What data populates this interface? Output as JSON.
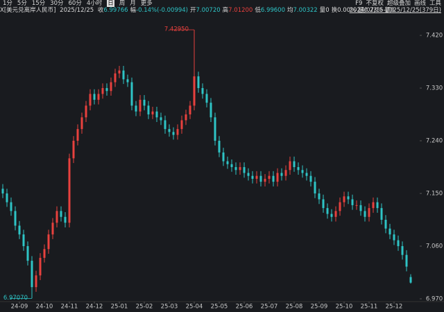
{
  "toolbar": {
    "periods": [
      "1分",
      "5分",
      "15分",
      "30分",
      "60分",
      "4小时",
      "日",
      "周",
      "月",
      "更多"
    ],
    "active": "日",
    "tools": [
      "F9",
      "不复权",
      "超级叠加",
      "画线",
      "工具"
    ]
  },
  "quote": {
    "symbol": "X[美元兑离岸人民币]",
    "date": "2025/12/25",
    "items": [
      {
        "label": "收",
        "value": "6.99766",
        "color": "#2ec4c6"
      },
      {
        "label": "幅",
        "value": "-0.14%(-0.00994)",
        "color": "#2ec4c6"
      },
      {
        "label": "开",
        "value": "7.00720",
        "color": "#2ec4c6"
      },
      {
        "label": "高",
        "value": "7.01200",
        "color": "#e8413e"
      },
      {
        "label": "低",
        "value": "6.99600",
        "color": "#2ec4c6"
      },
      {
        "label": "均",
        "value": "7.00322",
        "color": "#2ec4c6"
      },
      {
        "label": "量",
        "value": "0",
        "color": "#d8d8d8"
      },
      {
        "label": "换",
        "value": "0.00%",
        "color": "#d8d8d8"
      },
      {
        "label": "振",
        "value": "0.23%",
        "color": "#d8d8d8"
      },
      {
        "label": "额",
        "value": "0",
        "color": "#d8d8d8"
      }
    ],
    "range": "2024/07/15-2025/12/25(379日)"
  },
  "chart_data": {
    "type": "candlestick",
    "up_color": "#e8413e",
    "down_color": "#2ec4c6",
    "max_label": "7.42950",
    "min_label": "6.97070",
    "open": [
      7.158,
      7.15,
      7.135,
      7.12,
      7.095,
      7.08,
      7.06,
      7.035,
      6.99,
      7.01,
      7.04,
      7.055,
      7.08,
      7.1,
      7.12,
      7.11,
      7.1,
      7.21,
      7.24,
      7.26,
      7.28,
      7.3,
      7.32,
      7.31,
      7.32,
      7.33,
      7.325,
      7.34,
      7.355,
      7.36,
      7.345,
      7.34,
      7.3,
      7.29,
      7.31,
      7.3,
      7.285,
      7.29,
      7.28,
      7.275,
      7.26,
      7.255,
      7.25,
      7.26,
      7.275,
      7.285,
      7.3,
      7.35,
      7.33,
      7.32,
      7.305,
      7.28,
      7.24,
      7.22,
      7.205,
      7.2,
      7.195,
      7.19,
      7.195,
      7.185,
      7.18,
      7.175,
      7.18,
      7.17,
      7.175,
      7.18,
      7.17,
      7.185,
      7.18,
      7.19,
      7.205,
      7.195,
      7.19,
      7.185,
      7.18,
      7.17,
      7.15,
      7.14,
      7.125,
      7.115,
      7.11,
      7.12,
      7.135,
      7.145,
      7.14,
      7.13,
      7.13,
      7.12,
      7.11,
      7.125,
      7.135,
      7.125,
      7.105,
      7.09,
      7.08,
      7.07,
      7.06,
      7.045,
      7.0072
    ],
    "high": [
      7.166,
      7.158,
      7.143,
      7.128,
      7.103,
      7.088,
      7.068,
      7.043,
      7.018,
      7.048,
      7.063,
      7.088,
      7.108,
      7.128,
      7.128,
      7.118,
      7.218,
      7.248,
      7.268,
      7.288,
      7.308,
      7.328,
      7.328,
      7.328,
      7.338,
      7.338,
      7.348,
      7.363,
      7.368,
      7.368,
      7.353,
      7.348,
      7.308,
      7.318,
      7.318,
      7.308,
      7.298,
      7.298,
      7.288,
      7.283,
      7.268,
      7.263,
      7.268,
      7.283,
      7.293,
      7.308,
      7.4295,
      7.358,
      7.338,
      7.328,
      7.313,
      7.288,
      7.248,
      7.228,
      7.213,
      7.208,
      7.203,
      7.203,
      7.203,
      7.193,
      7.188,
      7.188,
      7.188,
      7.183,
      7.188,
      7.188,
      7.193,
      7.193,
      7.198,
      7.213,
      7.213,
      7.203,
      7.198,
      7.193,
      7.188,
      7.178,
      7.158,
      7.148,
      7.133,
      7.123,
      7.128,
      7.143,
      7.153,
      7.153,
      7.148,
      7.138,
      7.138,
      7.128,
      7.133,
      7.143,
      7.143,
      7.133,
      7.113,
      7.098,
      7.088,
      7.078,
      7.068,
      7.053,
      7.012
    ],
    "low": [
      7.142,
      7.127,
      7.112,
      7.087,
      7.072,
      7.052,
      7.027,
      6.9707,
      6.982,
      7.002,
      7.032,
      7.047,
      7.072,
      7.092,
      7.102,
      7.092,
      7.092,
      7.202,
      7.232,
      7.252,
      7.272,
      7.292,
      7.302,
      7.302,
      7.312,
      7.317,
      7.317,
      7.332,
      7.347,
      7.337,
      7.332,
      7.292,
      7.282,
      7.282,
      7.292,
      7.277,
      7.277,
      7.272,
      7.267,
      7.252,
      7.247,
      7.242,
      7.242,
      7.252,
      7.267,
      7.277,
      7.292,
      7.322,
      7.312,
      7.297,
      7.272,
      7.232,
      7.212,
      7.197,
      7.192,
      7.187,
      7.182,
      7.182,
      7.177,
      7.172,
      7.167,
      7.167,
      7.162,
      7.162,
      7.167,
      7.162,
      7.162,
      7.172,
      7.172,
      7.182,
      7.187,
      7.182,
      7.177,
      7.172,
      7.162,
      7.142,
      7.132,
      7.117,
      7.107,
      7.102,
      7.102,
      7.112,
      7.127,
      7.132,
      7.122,
      7.122,
      7.112,
      7.102,
      7.102,
      7.117,
      7.117,
      7.097,
      7.082,
      7.072,
      7.062,
      7.052,
      7.037,
      7.017,
      6.996
    ],
    "close": [
      7.15,
      7.135,
      7.12,
      7.095,
      7.08,
      7.06,
      7.035,
      6.99,
      7.01,
      7.04,
      7.055,
      7.08,
      7.1,
      7.12,
      7.11,
      7.1,
      7.21,
      7.24,
      7.26,
      7.28,
      7.3,
      7.32,
      7.31,
      7.32,
      7.33,
      7.325,
      7.34,
      7.355,
      7.36,
      7.345,
      7.34,
      7.3,
      7.29,
      7.31,
      7.3,
      7.285,
      7.29,
      7.28,
      7.275,
      7.26,
      7.255,
      7.25,
      7.26,
      7.275,
      7.285,
      7.3,
      7.35,
      7.33,
      7.32,
      7.305,
      7.28,
      7.24,
      7.22,
      7.205,
      7.2,
      7.195,
      7.19,
      7.195,
      7.185,
      7.18,
      7.175,
      7.18,
      7.17,
      7.175,
      7.18,
      7.17,
      7.185,
      7.18,
      7.19,
      7.205,
      7.195,
      7.19,
      7.185,
      7.18,
      7.17,
      7.15,
      7.14,
      7.125,
      7.115,
      7.11,
      7.12,
      7.135,
      7.145,
      7.14,
      7.13,
      7.13,
      7.12,
      7.11,
      7.125,
      7.135,
      7.125,
      7.105,
      7.09,
      7.08,
      7.07,
      7.06,
      7.045,
      7.025,
      6.99766
    ],
    "ylim": [
      6.97,
      7.45
    ],
    "yticks": [
      {
        "value": 7.42,
        "label": "7.420"
      },
      {
        "value": 7.33,
        "label": "7.330"
      },
      {
        "value": 7.24,
        "label": "7.240"
      },
      {
        "value": 7.15,
        "label": "7.150"
      },
      {
        "value": 7.06,
        "label": "7.060"
      },
      {
        "value": 6.97,
        "label": "6.970"
      }
    ],
    "xticks": [
      {
        "value": 4,
        "label": "24-09"
      },
      {
        "value": 10,
        "label": "24-10"
      },
      {
        "value": 16,
        "label": "24-11"
      },
      {
        "value": 22,
        "label": "24-12"
      },
      {
        "value": 28,
        "label": "25-01"
      },
      {
        "value": 34,
        "label": "25-02"
      },
      {
        "value": 40,
        "label": "25-03"
      },
      {
        "value": 46,
        "label": "25-04"
      },
      {
        "value": 52,
        "label": "25-05"
      },
      {
        "value": 58,
        "label": "25-06"
      },
      {
        "value": 64,
        "label": "25-07"
      },
      {
        "value": 70,
        "label": "25-08"
      },
      {
        "value": 76,
        "label": "25-09"
      },
      {
        "value": 82,
        "label": "25-10"
      },
      {
        "value": 88,
        "label": "25-11"
      },
      {
        "value": 94,
        "label": "25-12"
      }
    ]
  }
}
